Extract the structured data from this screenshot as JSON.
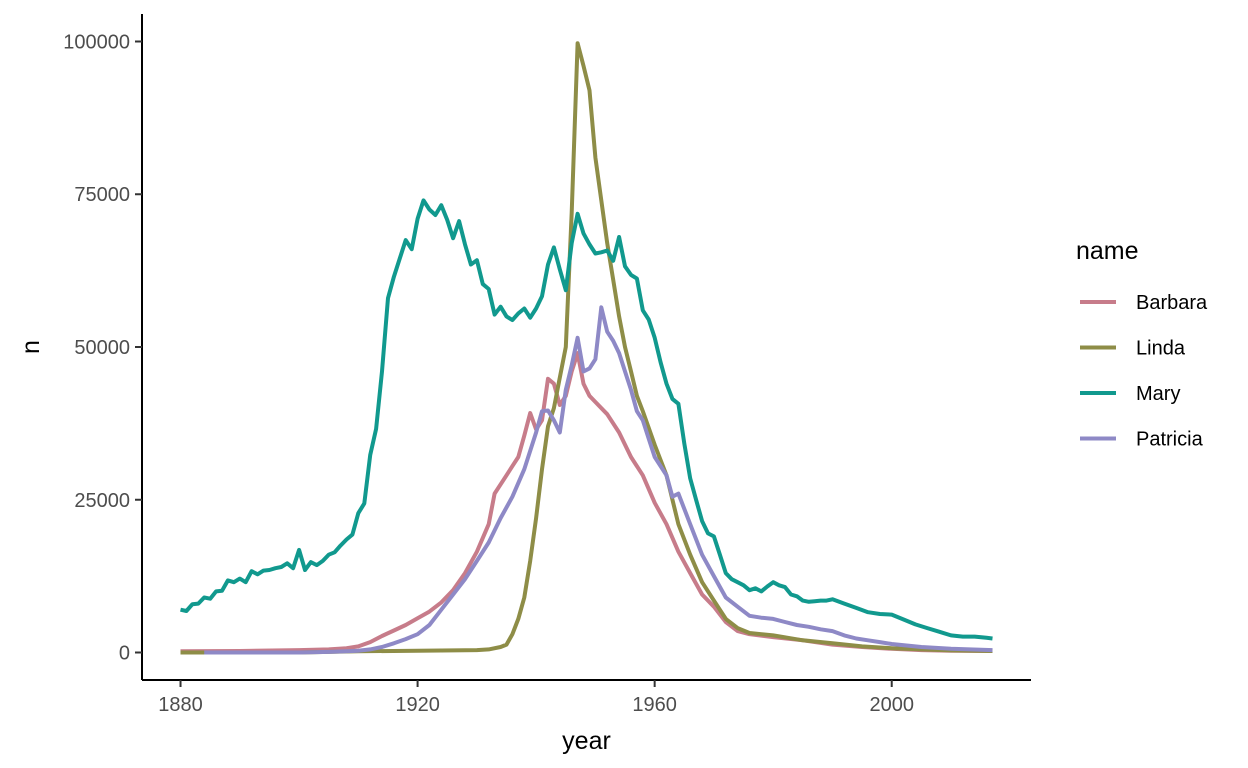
{
  "chart_data": {
    "type": "line",
    "xlabel": "year",
    "ylabel": "n",
    "xlim": [
      1873.5,
      2023.5
    ],
    "ylim": [
      -4500,
      104500
    ],
    "x_ticks": [
      1880,
      1920,
      1960,
      2000
    ],
    "y_ticks": [
      0,
      25000,
      50000,
      75000,
      100000
    ],
    "grid": false,
    "legend": {
      "title": "name",
      "position": "right"
    },
    "series": [
      {
        "name": "Barbara",
        "color": "#C77C8A",
        "points": [
          [
            1880,
            200
          ],
          [
            1890,
            250
          ],
          [
            1900,
            400
          ],
          [
            1905,
            500
          ],
          [
            1908,
            700
          ],
          [
            1910,
            1000
          ],
          [
            1912,
            1700
          ],
          [
            1914,
            2700
          ],
          [
            1916,
            3600
          ],
          [
            1918,
            4500
          ],
          [
            1920,
            5600
          ],
          [
            1922,
            6700
          ],
          [
            1924,
            8200
          ],
          [
            1926,
            10200
          ],
          [
            1928,
            13000
          ],
          [
            1930,
            16500
          ],
          [
            1932,
            21000
          ],
          [
            1933,
            26000
          ],
          [
            1935,
            29000
          ],
          [
            1936,
            30500
          ],
          [
            1937,
            32000
          ],
          [
            1938,
            35500
          ],
          [
            1939,
            39200
          ],
          [
            1940,
            36500
          ],
          [
            1941,
            38000
          ],
          [
            1942,
            44800
          ],
          [
            1943,
            44000
          ],
          [
            1944,
            40500
          ],
          [
            1945,
            42000
          ],
          [
            1946,
            46000
          ],
          [
            1947,
            49000
          ],
          [
            1948,
            44000
          ],
          [
            1949,
            42000
          ],
          [
            1950,
            41000
          ],
          [
            1952,
            39000
          ],
          [
            1954,
            36000
          ],
          [
            1956,
            32000
          ],
          [
            1958,
            29000
          ],
          [
            1960,
            24500
          ],
          [
            1962,
            21000
          ],
          [
            1964,
            16500
          ],
          [
            1966,
            13000
          ],
          [
            1968,
            9500
          ],
          [
            1970,
            7500
          ],
          [
            1972,
            5000
          ],
          [
            1974,
            3500
          ],
          [
            1976,
            3000
          ],
          [
            1980,
            2500
          ],
          [
            1985,
            2000
          ],
          [
            1990,
            1300
          ],
          [
            1995,
            900
          ],
          [
            2000,
            600
          ],
          [
            2005,
            400
          ],
          [
            2010,
            300
          ],
          [
            2017,
            250
          ]
        ]
      },
      {
        "name": "Linda",
        "color": "#8E8D47",
        "points": [
          [
            1880,
            0
          ],
          [
            1900,
            0
          ],
          [
            1910,
            200
          ],
          [
            1920,
            300
          ],
          [
            1930,
            400
          ],
          [
            1932,
            500
          ],
          [
            1934,
            900
          ],
          [
            1935,
            1300
          ],
          [
            1936,
            3000
          ],
          [
            1937,
            5500
          ],
          [
            1938,
            9000
          ],
          [
            1939,
            15000
          ],
          [
            1940,
            22000
          ],
          [
            1941,
            30000
          ],
          [
            1942,
            37000
          ],
          [
            1943,
            40000
          ],
          [
            1944,
            45000
          ],
          [
            1945,
            50000
          ],
          [
            1946,
            72000
          ],
          [
            1947,
            99700
          ],
          [
            1948,
            96000
          ],
          [
            1949,
            92000
          ],
          [
            1950,
            81000
          ],
          [
            1951,
            74000
          ],
          [
            1952,
            67000
          ],
          [
            1953,
            61000
          ],
          [
            1954,
            55000
          ],
          [
            1955,
            50000
          ],
          [
            1956,
            46000
          ],
          [
            1957,
            42000
          ],
          [
            1958,
            39500
          ],
          [
            1960,
            34000
          ],
          [
            1962,
            29000
          ],
          [
            1964,
            21000
          ],
          [
            1966,
            16000
          ],
          [
            1968,
            11500
          ],
          [
            1970,
            8500
          ],
          [
            1972,
            5500
          ],
          [
            1974,
            4000
          ],
          [
            1976,
            3200
          ],
          [
            1980,
            2800
          ],
          [
            1985,
            2000
          ],
          [
            1990,
            1500
          ],
          [
            1995,
            1000
          ],
          [
            2000,
            700
          ],
          [
            2005,
            500
          ],
          [
            2010,
            350
          ],
          [
            2017,
            250
          ]
        ]
      },
      {
        "name": "Mary",
        "color": "#11998E",
        "points": [
          [
            1880,
            7000
          ],
          [
            1881,
            6800
          ],
          [
            1882,
            7900
          ],
          [
            1883,
            8000
          ],
          [
            1884,
            9000
          ],
          [
            1885,
            8800
          ],
          [
            1886,
            10000
          ],
          [
            1887,
            10100
          ],
          [
            1888,
            11800
          ],
          [
            1889,
            11500
          ],
          [
            1890,
            12100
          ],
          [
            1891,
            11500
          ],
          [
            1892,
            13300
          ],
          [
            1893,
            12800
          ],
          [
            1894,
            13400
          ],
          [
            1895,
            13500
          ],
          [
            1896,
            13800
          ],
          [
            1897,
            14000
          ],
          [
            1898,
            14600
          ],
          [
            1899,
            13800
          ],
          [
            1900,
            16800
          ],
          [
            1901,
            13500
          ],
          [
            1902,
            14800
          ],
          [
            1903,
            14300
          ],
          [
            1904,
            15000
          ],
          [
            1905,
            16000
          ],
          [
            1906,
            16400
          ],
          [
            1907,
            17500
          ],
          [
            1908,
            18500
          ],
          [
            1909,
            19300
          ],
          [
            1910,
            22800
          ],
          [
            1911,
            24400
          ],
          [
            1912,
            32300
          ],
          [
            1913,
            36600
          ],
          [
            1914,
            46000
          ],
          [
            1915,
            58000
          ],
          [
            1916,
            61500
          ],
          [
            1917,
            64500
          ],
          [
            1918,
            67500
          ],
          [
            1919,
            66000
          ],
          [
            1920,
            71000
          ],
          [
            1921,
            74000
          ],
          [
            1922,
            72500
          ],
          [
            1923,
            71600
          ],
          [
            1924,
            73200
          ],
          [
            1925,
            70800
          ],
          [
            1926,
            67800
          ],
          [
            1927,
            70600
          ],
          [
            1928,
            66800
          ],
          [
            1929,
            63500
          ],
          [
            1930,
            64200
          ],
          [
            1931,
            60300
          ],
          [
            1932,
            59500
          ],
          [
            1933,
            55300
          ],
          [
            1934,
            56600
          ],
          [
            1935,
            55000
          ],
          [
            1936,
            54400
          ],
          [
            1937,
            55500
          ],
          [
            1938,
            56300
          ],
          [
            1939,
            54800
          ],
          [
            1940,
            56300
          ],
          [
            1941,
            58300
          ],
          [
            1942,
            63500
          ],
          [
            1943,
            66300
          ],
          [
            1944,
            62700
          ],
          [
            1945,
            59300
          ],
          [
            1946,
            67000
          ],
          [
            1947,
            71800
          ],
          [
            1948,
            68600
          ],
          [
            1949,
            66800
          ],
          [
            1950,
            65300
          ],
          [
            1951,
            65500
          ],
          [
            1952,
            65800
          ],
          [
            1953,
            64100
          ],
          [
            1954,
            68000
          ],
          [
            1955,
            63200
          ],
          [
            1956,
            61800
          ],
          [
            1957,
            61200
          ],
          [
            1958,
            56000
          ],
          [
            1959,
            54500
          ],
          [
            1960,
            51500
          ],
          [
            1961,
            47500
          ],
          [
            1962,
            44000
          ],
          [
            1963,
            41500
          ],
          [
            1964,
            40700
          ],
          [
            1965,
            34200
          ],
          [
            1966,
            28500
          ],
          [
            1967,
            25000
          ],
          [
            1968,
            21500
          ],
          [
            1969,
            19500
          ],
          [
            1970,
            19000
          ],
          [
            1971,
            16000
          ],
          [
            1972,
            13000
          ],
          [
            1973,
            12000
          ],
          [
            1974,
            11500
          ],
          [
            1975,
            11000
          ],
          [
            1976,
            10200
          ],
          [
            1977,
            10500
          ],
          [
            1978,
            10000
          ],
          [
            1979,
            10800
          ],
          [
            1980,
            11500
          ],
          [
            1981,
            11000
          ],
          [
            1982,
            10700
          ],
          [
            1983,
            9500
          ],
          [
            1984,
            9200
          ],
          [
            1985,
            8500
          ],
          [
            1986,
            8300
          ],
          [
            1987,
            8400
          ],
          [
            1988,
            8500
          ],
          [
            1989,
            8500
          ],
          [
            1990,
            8700
          ],
          [
            1992,
            8000
          ],
          [
            1994,
            7300
          ],
          [
            1996,
            6600
          ],
          [
            1998,
            6300
          ],
          [
            2000,
            6200
          ],
          [
            2002,
            5400
          ],
          [
            2004,
            4600
          ],
          [
            2006,
            4000
          ],
          [
            2008,
            3400
          ],
          [
            2010,
            2800
          ],
          [
            2012,
            2600
          ],
          [
            2014,
            2600
          ],
          [
            2016,
            2400
          ],
          [
            2017,
            2300
          ]
        ]
      },
      {
        "name": "Patricia",
        "color": "#8E89C6",
        "points": [
          [
            1884,
            0
          ],
          [
            1900,
            0
          ],
          [
            1905,
            100
          ],
          [
            1908,
            200
          ],
          [
            1910,
            300
          ],
          [
            1912,
            500
          ],
          [
            1914,
            900
          ],
          [
            1916,
            1500
          ],
          [
            1918,
            2200
          ],
          [
            1920,
            3000
          ],
          [
            1922,
            4500
          ],
          [
            1924,
            7000
          ],
          [
            1926,
            9500
          ],
          [
            1928,
            12000
          ],
          [
            1930,
            15000
          ],
          [
            1932,
            18000
          ],
          [
            1934,
            22000
          ],
          [
            1936,
            25500
          ],
          [
            1938,
            30000
          ],
          [
            1940,
            36000
          ],
          [
            1941,
            39500
          ],
          [
            1942,
            39600
          ],
          [
            1943,
            38000
          ],
          [
            1944,
            36000
          ],
          [
            1945,
            43000
          ],
          [
            1946,
            47000
          ],
          [
            1947,
            51500
          ],
          [
            1948,
            46000
          ],
          [
            1949,
            46500
          ],
          [
            1950,
            48000
          ],
          [
            1951,
            56500
          ],
          [
            1952,
            52500
          ],
          [
            1953,
            51000
          ],
          [
            1954,
            49000
          ],
          [
            1955,
            46000
          ],
          [
            1956,
            43000
          ],
          [
            1957,
            39500
          ],
          [
            1958,
            38000
          ],
          [
            1959,
            35000
          ],
          [
            1960,
            32000
          ],
          [
            1962,
            29000
          ],
          [
            1963,
            25500
          ],
          [
            1964,
            26000
          ],
          [
            1966,
            21000
          ],
          [
            1968,
            16000
          ],
          [
            1970,
            12500
          ],
          [
            1972,
            9000
          ],
          [
            1974,
            7500
          ],
          [
            1976,
            6000
          ],
          [
            1978,
            5700
          ],
          [
            1980,
            5500
          ],
          [
            1982,
            5000
          ],
          [
            1984,
            4500
          ],
          [
            1986,
            4200
          ],
          [
            1988,
            3800
          ],
          [
            1990,
            3500
          ],
          [
            1992,
            2800
          ],
          [
            1994,
            2300
          ],
          [
            1996,
            2000
          ],
          [
            1998,
            1700
          ],
          [
            2000,
            1400
          ],
          [
            2005,
            900
          ],
          [
            2010,
            600
          ],
          [
            2017,
            400
          ]
        ]
      }
    ]
  }
}
